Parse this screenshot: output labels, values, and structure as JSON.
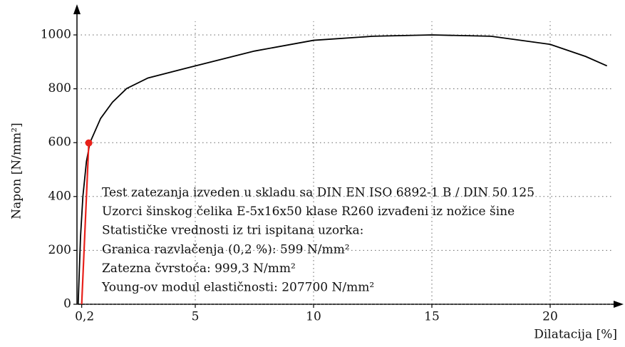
{
  "chart_data": {
    "type": "line",
    "xlabel": "Dilatacija [%]",
    "ylabel": "Napon [N/mm²]",
    "xlim": [
      0,
      23
    ],
    "ylim": [
      0,
      1100
    ],
    "xticks": [
      {
        "value": 0.2,
        "label": "0,2"
      },
      5,
      10,
      15,
      20
    ],
    "yticks": [
      0,
      200,
      400,
      600,
      800,
      1000
    ],
    "grid": true,
    "series": [
      {
        "color": "#000000",
        "x": [
          0.05,
          0.15,
          0.25,
          0.4,
          0.55,
          1,
          1.5,
          2.1,
          3,
          5,
          7.5,
          10,
          12.5,
          15,
          17.5,
          20,
          21.5,
          22.4
        ],
        "values": [
          0,
          250,
          400,
          530,
          600,
          690,
          750,
          801,
          840,
          885,
          940,
          980,
          995,
          1000,
          995,
          965,
          920,
          885
        ]
      },
      {
        "color": "#e8201a",
        "x": [
          0.2,
          0.5
        ],
        "values": [
          0,
          599
        ]
      }
    ],
    "points": [
      {
        "color": "#e8201a",
        "x": 0.5,
        "value": 599
      }
    ],
    "annotations": [
      "Test zatezanja izveden u skladu sa DIN EN ISO 6892-1 B / DIN 50 125",
      "Uzorci šinskog čelika E-5x16x50 klase R260 izvađeni iz nožice šine",
      "Statističke vrednosti iz tri ispitana uzorka:",
      "Granica razvlačenja (0,2 %): 599 N/mm²",
      "Zatezna čvrstoća: 999,3 N/mm²",
      "Young-ov modul elastičnosti: 207700 N/mm²"
    ]
  }
}
